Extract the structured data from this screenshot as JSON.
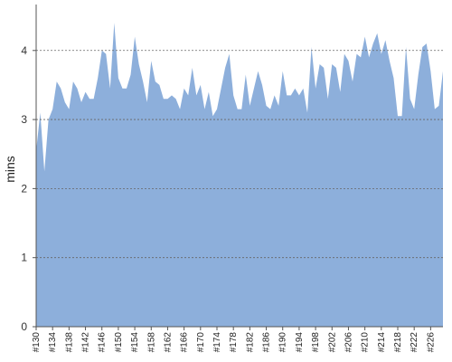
{
  "colors": {
    "area_fill": "#8DAFDB",
    "grid": "#666666",
    "axis": "#555555"
  },
  "chart_data": {
    "type": "area",
    "title": "",
    "xlabel": "",
    "ylabel": "mins",
    "ylim": [
      0,
      4.6
    ],
    "yticks": [
      0,
      1,
      2,
      3,
      4
    ],
    "grid": "horizontal dashed",
    "legend": "none",
    "x_tick_labels": [
      "#130",
      "#134",
      "#138",
      "#142",
      "#146",
      "#150",
      "#154",
      "#158",
      "#162",
      "#166",
      "#170",
      "#174",
      "#178",
      "#182",
      "#186",
      "#190",
      "#194",
      "#198",
      "#202",
      "#206",
      "#210",
      "#214",
      "#218",
      "#222",
      "#226"
    ],
    "series": [
      {
        "x": [
          "#130",
          "#131",
          "#132",
          "#133",
          "#134",
          "#135",
          "#136",
          "#137",
          "#138",
          "#139",
          "#140",
          "#141",
          "#142",
          "#143",
          "#144",
          "#145",
          "#146",
          "#147",
          "#148",
          "#149",
          "#150",
          "#151",
          "#152",
          "#153",
          "#154",
          "#155",
          "#156",
          "#157",
          "#158",
          "#159",
          "#160",
          "#161",
          "#162",
          "#163",
          "#164",
          "#165",
          "#166",
          "#167",
          "#168",
          "#169",
          "#170",
          "#171",
          "#172",
          "#173",
          "#174",
          "#175",
          "#176",
          "#177",
          "#178",
          "#179",
          "#180",
          "#181",
          "#182",
          "#183",
          "#184",
          "#185",
          "#186",
          "#187",
          "#188",
          "#189",
          "#190",
          "#191",
          "#192",
          "#193",
          "#194",
          "#195",
          "#196",
          "#197",
          "#198",
          "#199",
          "#200",
          "#201",
          "#202",
          "#203",
          "#204",
          "#205",
          "#206",
          "#207",
          "#208",
          "#209",
          "#210",
          "#211",
          "#212",
          "#213",
          "#214",
          "#215",
          "#216",
          "#217",
          "#218",
          "#219",
          "#220",
          "#221",
          "#222",
          "#223",
          "#224",
          "#225",
          "#226",
          "#227",
          "#228",
          "#229"
        ],
        "values": [
          2.55,
          3.1,
          2.25,
          3.0,
          3.15,
          3.55,
          3.45,
          3.25,
          3.15,
          3.55,
          3.45,
          3.25,
          3.4,
          3.3,
          3.3,
          3.6,
          4.0,
          3.95,
          3.45,
          4.4,
          3.6,
          3.45,
          3.45,
          3.65,
          4.2,
          3.8,
          3.55,
          3.25,
          3.85,
          3.55,
          3.5,
          3.3,
          3.3,
          3.35,
          3.3,
          3.15,
          3.45,
          3.35,
          3.75,
          3.35,
          3.5,
          3.15,
          3.4,
          3.05,
          3.15,
          3.45,
          3.75,
          3.95,
          3.35,
          3.15,
          3.15,
          3.65,
          3.2,
          3.45,
          3.7,
          3.5,
          3.2,
          3.15,
          3.35,
          3.2,
          3.7,
          3.35,
          3.35,
          3.45,
          3.35,
          3.45,
          3.1,
          4.05,
          3.45,
          3.8,
          3.75,
          3.3,
          3.8,
          3.75,
          3.4,
          3.95,
          3.85,
          3.55,
          3.95,
          3.9,
          4.2,
          3.9,
          4.1,
          4.25,
          3.95,
          4.15,
          3.85,
          3.6,
          3.05,
          3.05,
          4.05,
          3.3,
          3.15,
          3.65,
          4.05,
          4.1,
          3.7,
          3.15,
          3.2,
          3.7
        ]
      }
    ]
  }
}
